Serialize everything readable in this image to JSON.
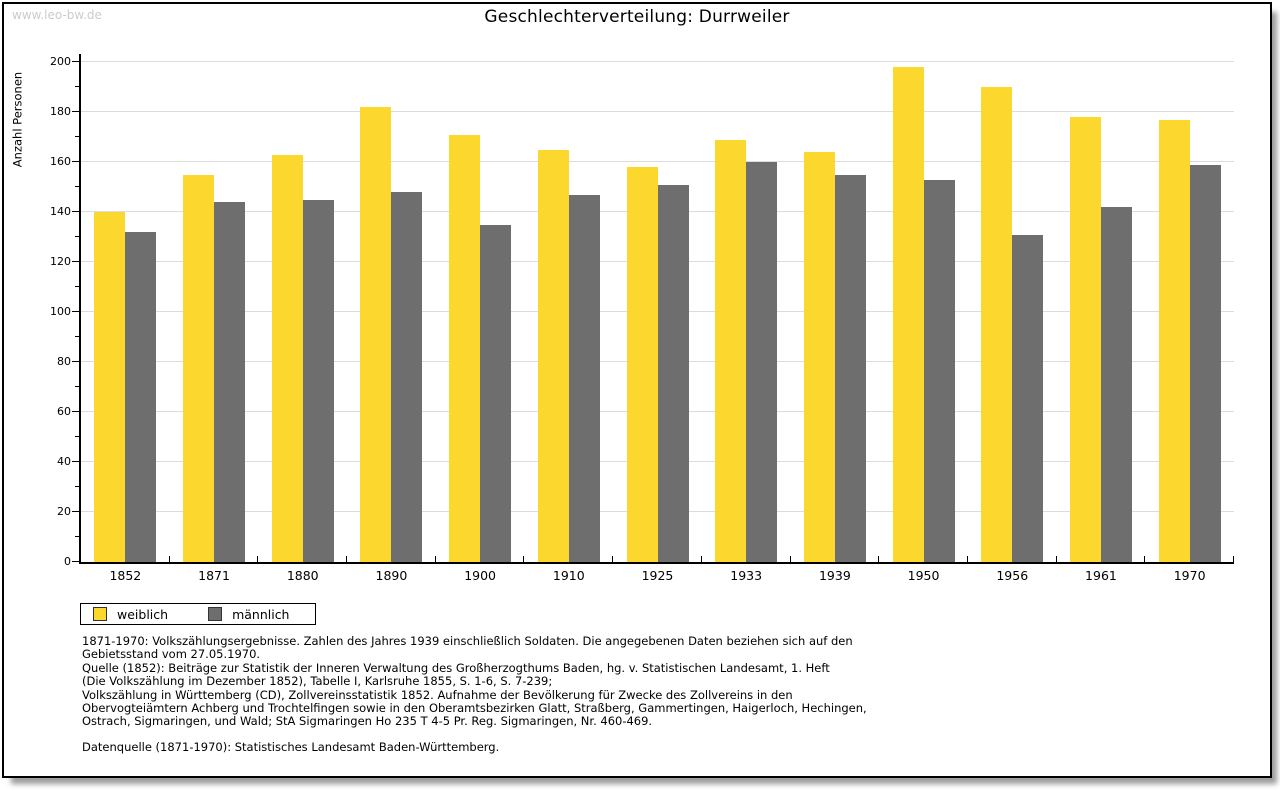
{
  "watermark": "www.leo-bw.de",
  "chart_data": {
    "type": "bar",
    "title": "Geschlechterverteilung: Durrweiler",
    "ylabel": "Anzahl Personen",
    "xlabel": "",
    "categories": [
      "1852",
      "1871",
      "1880",
      "1890",
      "1900",
      "1910",
      "1925",
      "1933",
      "1939",
      "1950",
      "1956",
      "1961",
      "1970"
    ],
    "series": [
      {
        "name": "weiblich",
        "color": "#fcd72d",
        "values": [
          140,
          155,
          163,
          182,
          171,
          165,
          158,
          169,
          164,
          198,
          190,
          178,
          177
        ]
      },
      {
        "name": "männlich",
        "color": "#6e6e6e",
        "values": [
          132,
          144,
          145,
          148,
          135,
          147,
          151,
          160,
          155,
          153,
          131,
          142,
          159
        ]
      }
    ],
    "ylim": [
      0,
      200
    ],
    "ytick_step": 20,
    "yminor_step": 10,
    "grid": true,
    "gridline_color": "#dcdcdc",
    "legend_position": "bottom-left"
  },
  "legend": {
    "items": [
      {
        "label": "weiblich",
        "color": "#fcd72d"
      },
      {
        "label": "männlich",
        "color": "#6e6e6e"
      }
    ]
  },
  "footer": {
    "notes_lines": [
      "1871-1970: Volkszählungsergebnisse. Zahlen des Jahres 1939 einschließlich Soldaten. Die angegebenen Daten beziehen sich auf den",
      "Gebietsstand vom 27.05.1970.",
      "Quelle (1852): Beiträge zur Statistik der Inneren Verwaltung des Großherzogthums Baden, hg. v. Statistischen Landesamt, 1. Heft",
      "(Die Volkszählung im Dezember 1852), Tabelle I, Karlsruhe 1855, S. 1-6, S. 7-239;",
      "Volkszählung in Württemberg (CD), Zollvereinsstatistik 1852. Aufnahme der Bevölkerung für Zwecke des Zollvereins in den",
      "Obervogteiämtern Achberg und Trochtelfingen sowie in den Oberamtsbezirken Glatt, Straßberg, Gammertingen, Haigerloch, Hechingen,",
      "Ostrach, Sigmaringen, und Wald; StA Sigmaringen Ho 235 T 4-5 Pr. Reg. Sigmaringen, Nr. 460-469."
    ],
    "datasource": "Datenquelle (1871-1970): Statistisches Landesamt Baden-Württemberg."
  }
}
